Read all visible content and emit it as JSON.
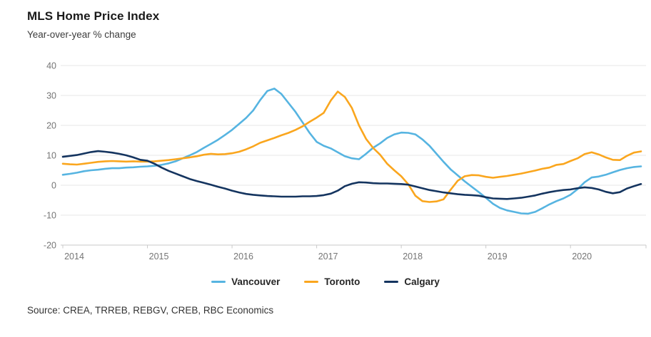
{
  "source": {
    "label": "Source: CREA, TRREB, REBGV, CREB, RBC Economics"
  },
  "chart_data": {
    "type": "line",
    "title": "MLS Home Price Index",
    "subtitle": "Year-over-year % change",
    "xlabel": "",
    "ylabel": "",
    "frequency": "monthly",
    "x_range": [
      "2014-01",
      "2020-11"
    ],
    "x_tick_labels": [
      "2014",
      "2015",
      "2016",
      "2017",
      "2018",
      "2019",
      "2020"
    ],
    "y_ticks": [
      40,
      30,
      20,
      10,
      0,
      -10,
      -20
    ],
    "ylim": [
      -20,
      40
    ],
    "grid": "horizontal",
    "legend_position": "bottom",
    "colors": {
      "grid": "#e7e7e7",
      "axis_line": "#c9c9c9",
      "tick_label": "#757575"
    },
    "series": [
      {
        "name": "Vancouver",
        "color": "#56B4E1",
        "values": [
          3.5,
          3.8,
          4.2,
          4.7,
          5.0,
          5.2,
          5.5,
          5.7,
          5.7,
          5.9,
          6.0,
          6.2,
          6.3,
          6.5,
          6.8,
          7.3,
          8.0,
          9.0,
          10.0,
          11.1,
          12.5,
          13.8,
          15.2,
          16.8,
          18.5,
          20.5,
          22.5,
          25.0,
          28.5,
          31.5,
          32.3,
          30.5,
          27.5,
          24.5,
          21.0,
          17.5,
          14.5,
          13.2,
          12.3,
          11.0,
          9.7,
          9.0,
          8.7,
          10.5,
          12.5,
          14.0,
          15.8,
          17.0,
          17.6,
          17.5,
          17.0,
          15.3,
          13.2,
          10.5,
          7.8,
          5.3,
          3.3,
          1.3,
          -0.5,
          -2.3,
          -4.2,
          -6.2,
          -7.6,
          -8.4,
          -8.9,
          -9.4,
          -9.5,
          -8.9,
          -7.7,
          -6.4,
          -5.3,
          -4.4,
          -3.2,
          -1.3,
          1.0,
          2.6,
          2.9,
          3.5,
          4.3,
          5.1,
          5.7,
          6.1,
          6.3
        ]
      },
      {
        "name": "Toronto",
        "color": "#FAA61E",
        "values": [
          7.2,
          7.0,
          6.9,
          7.2,
          7.5,
          7.8,
          8.0,
          8.1,
          8.0,
          7.9,
          8.0,
          7.9,
          7.9,
          8.0,
          8.2,
          8.4,
          8.7,
          9.0,
          9.3,
          9.7,
          10.2,
          10.5,
          10.3,
          10.4,
          10.7,
          11.2,
          12.0,
          13.0,
          14.2,
          15.0,
          15.8,
          16.7,
          17.5,
          18.5,
          19.7,
          21.2,
          22.6,
          24.2,
          28.3,
          31.3,
          29.5,
          25.8,
          20.0,
          15.5,
          12.5,
          10.2,
          7.2,
          5.0,
          3.0,
          0.3,
          -3.5,
          -5.3,
          -5.6,
          -5.4,
          -4.7,
          -1.5,
          1.5,
          3.0,
          3.4,
          3.3,
          2.8,
          2.5,
          2.8,
          3.1,
          3.5,
          3.9,
          4.4,
          4.9,
          5.5,
          5.9,
          6.8,
          7.1,
          8.1,
          9.0,
          10.4,
          11.0,
          10.3,
          9.3,
          8.5,
          8.4,
          9.8,
          10.9,
          11.3
        ]
      },
      {
        "name": "Calgary",
        "color": "#14345F",
        "values": [
          9.5,
          9.8,
          10.1,
          10.6,
          11.1,
          11.4,
          11.2,
          10.9,
          10.5,
          10.0,
          9.3,
          8.5,
          8.2,
          7.2,
          5.9,
          4.8,
          3.9,
          3.0,
          2.1,
          1.4,
          0.8,
          0.2,
          -0.5,
          -1.1,
          -1.8,
          -2.4,
          -2.9,
          -3.2,
          -3.4,
          -3.6,
          -3.7,
          -3.8,
          -3.8,
          -3.8,
          -3.7,
          -3.7,
          -3.6,
          -3.3,
          -2.8,
          -1.8,
          -0.3,
          0.5,
          1.0,
          0.9,
          0.7,
          0.6,
          0.6,
          0.5,
          0.4,
          0.2,
          -0.4,
          -1.0,
          -1.6,
          -2.0,
          -2.4,
          -2.7,
          -3.0,
          -3.2,
          -3.3,
          -3.5,
          -4.0,
          -4.4,
          -4.5,
          -4.6,
          -4.4,
          -4.2,
          -3.8,
          -3.4,
          -2.8,
          -2.3,
          -1.9,
          -1.6,
          -1.4,
          -1.0,
          -0.7,
          -0.9,
          -1.4,
          -2.2,
          -2.7,
          -2.3,
          -1.1,
          -0.3,
          0.4
        ]
      }
    ]
  }
}
